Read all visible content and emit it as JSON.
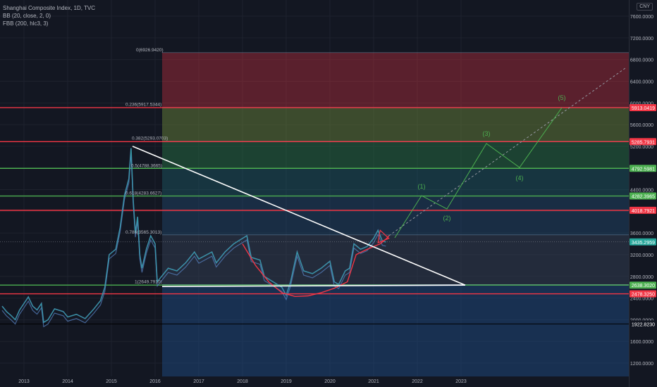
{
  "legend": {
    "title": "Shanghai Composite Index, 1D, TVC",
    "bb": "BB (20, close, 2, 0)",
    "fbb": "FBB (200, hlc3, 3)",
    "settings_icon": "gear-icon",
    "eye_icon": "eye-icon"
  },
  "currency": "CNY",
  "colors": {
    "background": "#131722",
    "grid": "#1e222d",
    "red_line": "#f23645",
    "green_line": "#4caf50",
    "blue_zone": "#1e3a5f",
    "price": "#2962ff",
    "price_line": "#5a86c8",
    "wave": "#4caf50",
    "arc": "#f23645",
    "trendline": "#ffffff"
  },
  "chart_data": {
    "type": "line",
    "title": "Shanghai Composite Index, 1D, TVC",
    "x_ticks": [
      "2013",
      "2014",
      "2015",
      "2016",
      "2017",
      "2018",
      "2019",
      "2020",
      "2021",
      "2022",
      "2023"
    ],
    "y_ticks": [
      "7600.0000",
      "7200.0000",
      "6800.0000",
      "6400.0000",
      "6000.0000",
      "5600.0000",
      "5200.0000",
      "4800.0000",
      "4400.0000",
      "4000.0000",
      "3600.0000",
      "3200.0000",
      "2800.0000",
      "2400.0000",
      "2000.0000",
      "1600.0000",
      "1200.0000"
    ],
    "ylim": [
      1000,
      7800
    ],
    "fib_labels": [
      "0(6926.9420)",
      "0.236(5917.5344)",
      "0.382(5293.0703)",
      "0.5(4788.3665)",
      "0.618(4283.6627)",
      "0.786(3565.3013)",
      "1(2649.7910)"
    ],
    "price_tags": [
      {
        "label": "5913.0419",
        "value": 5913.0419,
        "color": "#f23645"
      },
      {
        "label": "5285.7931",
        "value": 5285.7931,
        "color": "#f23645"
      },
      {
        "label": "4792.5981",
        "value": 4792.5981,
        "color": "#4caf50"
      },
      {
        "label": "4282.3965",
        "value": 4282.3965,
        "color": "#4caf50"
      },
      {
        "label": "4018.7921",
        "value": 4018.7921,
        "color": "#f23645"
      },
      {
        "label": "3435.2959",
        "value": 3435.2959,
        "color": "#26a69a"
      },
      {
        "label": "2638.3020",
        "value": 2638.302,
        "color": "#4caf50"
      },
      {
        "label": "2478.3250",
        "value": 2478.325,
        "color": "#f23645"
      },
      {
        "label": "1922.8230",
        "value": 1922.823,
        "color": "#131722"
      }
    ],
    "wave_labels": [
      "(1)",
      "(2)",
      "(3)",
      "(4)",
      "(5)"
    ],
    "price_series": [
      {
        "year": 2012.5,
        "value": 2250
      },
      {
        "year": 2012.6,
        "value": 2150
      },
      {
        "year": 2012.7,
        "value": 2080
      },
      {
        "year": 2012.8,
        "value": 2000
      },
      {
        "year": 2012.9,
        "value": 2180
      },
      {
        "year": 2013.0,
        "value": 2300
      },
      {
        "year": 2013.1,
        "value": 2420
      },
      {
        "year": 2013.2,
        "value": 2250
      },
      {
        "year": 2013.3,
        "value": 2180
      },
      {
        "year": 2013.4,
        "value": 2300
      },
      {
        "year": 2013.45,
        "value": 1950
      },
      {
        "year": 2013.55,
        "value": 2000
      },
      {
        "year": 2013.7,
        "value": 2200
      },
      {
        "year": 2013.9,
        "value": 2150
      },
      {
        "year": 2014.0,
        "value": 2050
      },
      {
        "year": 2014.2,
        "value": 2100
      },
      {
        "year": 2014.4,
        "value": 2020
      },
      {
        "year": 2014.6,
        "value": 2200
      },
      {
        "year": 2014.75,
        "value": 2350
      },
      {
        "year": 2014.85,
        "value": 2600
      },
      {
        "year": 2014.95,
        "value": 3200
      },
      {
        "year": 2015.1,
        "value": 3300
      },
      {
        "year": 2015.2,
        "value": 3700
      },
      {
        "year": 2015.3,
        "value": 4300
      },
      {
        "year": 2015.4,
        "value": 4600
      },
      {
        "year": 2015.45,
        "value": 5166
      },
      {
        "year": 2015.5,
        "value": 4200
      },
      {
        "year": 2015.55,
        "value": 3600
      },
      {
        "year": 2015.6,
        "value": 3900
      },
      {
        "year": 2015.65,
        "value": 3200
      },
      {
        "year": 2015.7,
        "value": 2950
      },
      {
        "year": 2015.8,
        "value": 3300
      },
      {
        "year": 2015.9,
        "value": 3550
      },
      {
        "year": 2016.0,
        "value": 3400
      },
      {
        "year": 2016.05,
        "value": 2700
      },
      {
        "year": 2016.1,
        "value": 2750
      },
      {
        "year": 2016.3,
        "value": 2950
      },
      {
        "year": 2016.5,
        "value": 2900
      },
      {
        "year": 2016.7,
        "value": 3050
      },
      {
        "year": 2016.9,
        "value": 3250
      },
      {
        "year": 2017.0,
        "value": 3120
      },
      {
        "year": 2017.3,
        "value": 3250
      },
      {
        "year": 2017.4,
        "value": 3050
      },
      {
        "year": 2017.6,
        "value": 3250
      },
      {
        "year": 2017.8,
        "value": 3400
      },
      {
        "year": 2018.0,
        "value": 3500
      },
      {
        "year": 2018.1,
        "value": 3550
      },
      {
        "year": 2018.2,
        "value": 3150
      },
      {
        "year": 2018.4,
        "value": 3100
      },
      {
        "year": 2018.5,
        "value": 2800
      },
      {
        "year": 2018.7,
        "value": 2700
      },
      {
        "year": 2018.9,
        "value": 2600
      },
      {
        "year": 2019.0,
        "value": 2450
      },
      {
        "year": 2019.1,
        "value": 2700
      },
      {
        "year": 2019.25,
        "value": 3250
      },
      {
        "year": 2019.4,
        "value": 2900
      },
      {
        "year": 2019.6,
        "value": 2850
      },
      {
        "year": 2019.8,
        "value": 2950
      },
      {
        "year": 2020.0,
        "value": 3080
      },
      {
        "year": 2020.1,
        "value": 2700
      },
      {
        "year": 2020.2,
        "value": 2650
      },
      {
        "year": 2020.35,
        "value": 2900
      },
      {
        "year": 2020.45,
        "value": 2950
      },
      {
        "year": 2020.55,
        "value": 3400
      },
      {
        "year": 2020.7,
        "value": 3300
      },
      {
        "year": 2020.85,
        "value": 3350
      },
      {
        "year": 2021.0,
        "value": 3500
      },
      {
        "year": 2021.1,
        "value": 3650
      },
      {
        "year": 2021.2,
        "value": 3450
      },
      {
        "year": 2021.28,
        "value": 3435
      }
    ]
  }
}
